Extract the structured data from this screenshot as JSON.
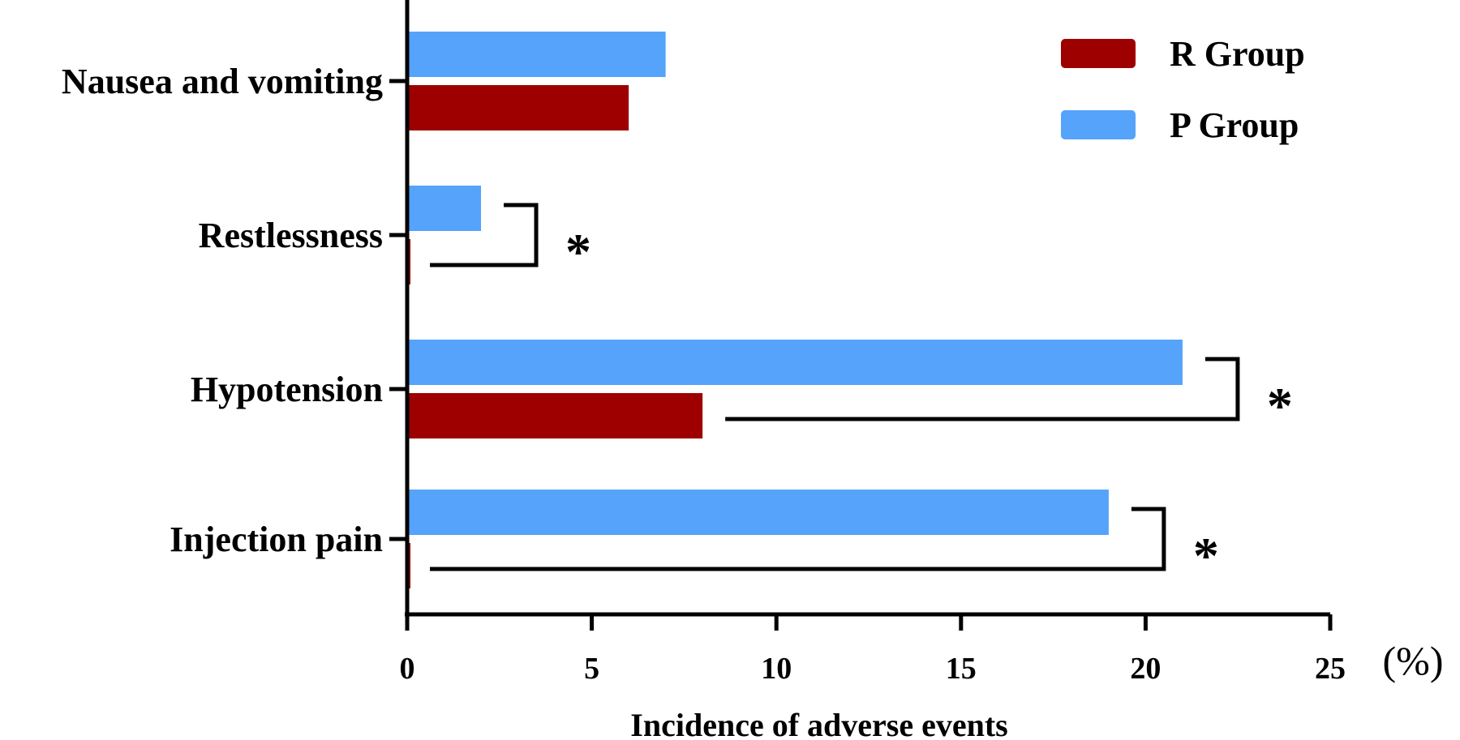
{
  "chart_data": {
    "type": "bar",
    "orientation": "horizontal",
    "categories": [
      "Nausea and vomiting",
      "Restlessness",
      "Hypotension",
      "Injection pain"
    ],
    "series": [
      {
        "name": "P Group",
        "color": "#55A3FA",
        "values": [
          7,
          2,
          21,
          19
        ]
      },
      {
        "name": "R Group",
        "color": "#9E0000",
        "values": [
          6,
          0,
          8,
          0
        ]
      }
    ],
    "legend_order": [
      "R Group",
      "P Group"
    ],
    "legend_position": "top-right",
    "xlabel": "Incidence of adverse events",
    "x_unit": "(%)",
    "xlim": [
      0,
      25
    ],
    "xticks": [
      0,
      5,
      10,
      15,
      20,
      25
    ],
    "grid": false,
    "significance": [
      {
        "category": "Restlessness",
        "marker": "*",
        "p_value": 2,
        "r_value": 0
      },
      {
        "category": "Hypotension",
        "marker": "*",
        "p_value": 21,
        "r_value": 8
      },
      {
        "category": "Injection pain",
        "marker": "*",
        "p_value": 19,
        "r_value": 0
      }
    ]
  }
}
